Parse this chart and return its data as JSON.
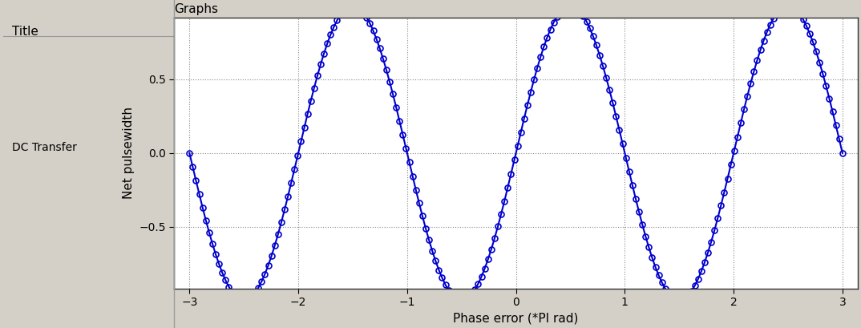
{
  "title_panel_text": "Title",
  "graphs_panel_text": "Graphs",
  "left_label": "DC Transfer",
  "xlabel": "Phase error (*PI rad)",
  "ylabel": "Net pulsewidth",
  "xlim": [
    -3.14,
    3.14
  ],
  "ylim": [
    -0.92,
    0.92
  ],
  "xticks": [
    -3,
    -2,
    -1,
    0,
    1,
    2,
    3
  ],
  "yticks": [
    -0.5,
    0.0,
    0.5
  ],
  "line_color": "#0000cc",
  "marker": "o",
  "markersize": 5,
  "markerfacecolor": "none",
  "markeredgecolor": "#0000cc",
  "linewidth": 1.5,
  "grid_color": "#888888",
  "grid_linestyle": "dotted",
  "background_color": "#ffffff",
  "panel_bg": "#d4d0c8",
  "num_points": 300
}
